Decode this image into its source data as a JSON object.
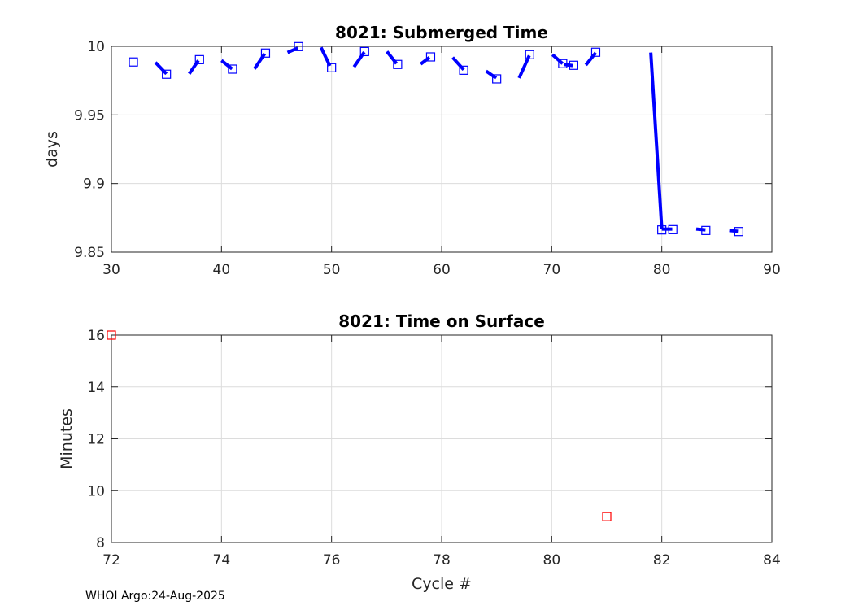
{
  "footer": "WHOI Argo:24-Aug-2025",
  "colors": {
    "series": "#0000ff",
    "surface": "#ff0000",
    "grid": "#dcdcdc",
    "axis": "#262626"
  },
  "chart_data": [
    {
      "type": "scatter",
      "title": "8021: Submerged Time",
      "xlabel": "",
      "ylabel": "days",
      "xlim": [
        30,
        90
      ],
      "ylim": [
        9.85,
        10
      ],
      "xticks": [
        "30",
        "40",
        "50",
        "60",
        "70",
        "80",
        "90"
      ],
      "yticks": [
        "9.85",
        "9.9",
        "9.95",
        "10"
      ],
      "xtick_values": [
        30,
        40,
        50,
        60,
        70,
        80,
        90
      ],
      "ytick_values": [
        9.85,
        9.9,
        9.95,
        10
      ],
      "grid": true,
      "points": [
        {
          "x": 32,
          "y": 9.9886
        },
        {
          "x": 35,
          "y": 9.9797
        },
        {
          "x": 38,
          "y": 9.9903
        },
        {
          "x": 41,
          "y": 9.9834
        },
        {
          "x": 44,
          "y": 9.9951
        },
        {
          "x": 47,
          "y": 9.9998
        },
        {
          "x": 50,
          "y": 9.9844
        },
        {
          "x": 53,
          "y": 9.9962
        },
        {
          "x": 56,
          "y": 9.9868
        },
        {
          "x": 59,
          "y": 9.9923
        },
        {
          "x": 62,
          "y": 9.9826
        },
        {
          "x": 65,
          "y": 9.9763
        },
        {
          "x": 68,
          "y": 9.9939
        },
        {
          "x": 71,
          "y": 9.9874
        },
        {
          "x": 72,
          "y": 9.9862
        },
        {
          "x": 74,
          "y": 9.9957
        },
        {
          "x": 80,
          "y": 9.8662
        },
        {
          "x": 81,
          "y": 9.8664
        },
        {
          "x": 84,
          "y": 9.8658
        },
        {
          "x": 87,
          "y": 9.865
        }
      ],
      "segments": [
        {
          "x0": 34.0,
          "y0": 9.9883,
          "x1": 35.0,
          "y1": 9.98
        },
        {
          "x0": 37.07,
          "y0": 9.98,
          "x1": 37.9,
          "y1": 9.9897
        },
        {
          "x0": 40.0,
          "y0": 9.9897,
          "x1": 40.96,
          "y1": 9.9836
        },
        {
          "x0": 43.0,
          "y0": 9.9836,
          "x1": 43.93,
          "y1": 9.9947
        },
        {
          "x0": 46.0,
          "y0": 9.9955,
          "x1": 46.94,
          "y1": 9.9988
        },
        {
          "x0": 49.04,
          "y0": 9.9992,
          "x1": 49.85,
          "y1": 9.9858
        },
        {
          "x0": 52.04,
          "y0": 9.985,
          "x1": 52.97,
          "y1": 9.9958
        },
        {
          "x0": 55.03,
          "y0": 9.9962,
          "x1": 55.9,
          "y1": 9.9874
        },
        {
          "x0": 58.1,
          "y0": 9.9871,
          "x1": 58.9,
          "y1": 9.9919
        },
        {
          "x0": 61.0,
          "y0": 9.9919,
          "x1": 62.0,
          "y1": 9.983
        },
        {
          "x0": 64.04,
          "y0": 9.982,
          "x1": 64.95,
          "y1": 9.9769
        },
        {
          "x0": 67.04,
          "y0": 9.9769,
          "x1": 67.96,
          "y1": 9.9933
        },
        {
          "x0": 70.07,
          "y0": 9.9939,
          "x1": 70.99,
          "y1": 9.9874
        },
        {
          "x0": 71.1,
          "y0": 9.9868,
          "x1": 71.9,
          "y1": 9.986
        },
        {
          "x0": 73.1,
          "y0": 9.9864,
          "x1": 74.0,
          "y1": 9.9953
        },
        {
          "x0": 79.0,
          "y0": 9.9955,
          "x1": 80.0,
          "y1": 9.8668
        },
        {
          "x0": 80.0,
          "y0": 9.8668,
          "x1": 80.95,
          "y1": 9.8668
        },
        {
          "x0": 83.13,
          "y0": 9.8668,
          "x1": 83.97,
          "y1": 9.8662
        },
        {
          "x0": 86.13,
          "y0": 9.8658,
          "x1": 86.92,
          "y1": 9.8652
        }
      ]
    },
    {
      "type": "scatter",
      "title": "8021: Time on Surface",
      "xlabel": "Cycle #",
      "ylabel": "Minutes",
      "xlim": [
        72,
        84
      ],
      "ylim": [
        8,
        16
      ],
      "xticks": [
        "72",
        "74",
        "76",
        "78",
        "80",
        "82",
        "84"
      ],
      "yticks": [
        "8",
        "10",
        "12",
        "14",
        "16"
      ],
      "xtick_values": [
        72,
        74,
        76,
        78,
        80,
        82,
        84
      ],
      "ytick_values": [
        8,
        10,
        12,
        14,
        16
      ],
      "grid": true,
      "points": [
        {
          "x": 72,
          "y": 16
        },
        {
          "x": 81,
          "y": 9
        }
      ],
      "segments": []
    }
  ]
}
